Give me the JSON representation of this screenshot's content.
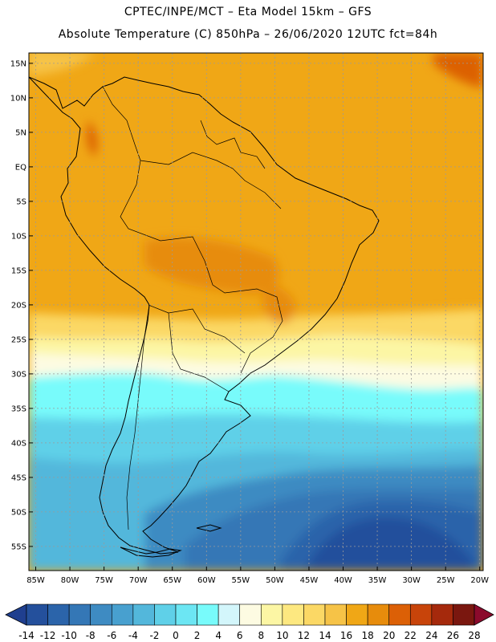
{
  "header": {
    "line1": "CPTEC/INPE/MCT –  Eta Model 15km – GFS",
    "line2": "Absolute Temperature (C) 850hPa – 26/06/2020 12UTC fct=84h"
  },
  "map": {
    "lat_labels": [
      "15N",
      "10N",
      "5N",
      "EQ",
      "5S",
      "10S",
      "15S",
      "20S",
      "25S",
      "30S",
      "35S",
      "40S",
      "45S",
      "50S",
      "55S"
    ],
    "lat_values": [
      15,
      10,
      5,
      0,
      -5,
      -10,
      -15,
      -20,
      -25,
      -30,
      -35,
      -40,
      -45,
      -50,
      -55
    ],
    "lon_labels": [
      "85W",
      "80W",
      "75W",
      "70W",
      "65W",
      "60W",
      "55W",
      "50W",
      "45W",
      "40W",
      "35W",
      "30W",
      "25W",
      "20W"
    ],
    "lon_values": [
      -85,
      -80,
      -75,
      -70,
      -65,
      -60,
      -55,
      -50,
      -45,
      -40,
      -35,
      -30,
      -25,
      -20
    ],
    "extent": {
      "lon": [
        -86,
        -19.5
      ],
      "lat": [
        -58.5,
        16.5
      ]
    }
  },
  "colorbar": {
    "labels": [
      "-14",
      "-12",
      "-10",
      "-8",
      "-6",
      "-4",
      "-2",
      "0",
      "2",
      "4",
      "6",
      "8",
      "10",
      "12",
      "14",
      "16",
      "18",
      "20",
      "22",
      "24",
      "26",
      "28"
    ],
    "colors": [
      "#1f3f8f",
      "#24509c",
      "#2b64aa",
      "#3477b6",
      "#3e8bc2",
      "#48a0cf",
      "#53b7db",
      "#5fd0e8",
      "#6ce6f3",
      "#78fbfb",
      "#d3f6fb",
      "#fdfbe2",
      "#fcf6a4",
      "#fde880",
      "#fbd865",
      "#f6c347",
      "#f0a716",
      "#e78c0c",
      "#dc6006",
      "#c8440a",
      "#a5290c",
      "#7a170f",
      "#8b0a2c"
    ]
  }
}
